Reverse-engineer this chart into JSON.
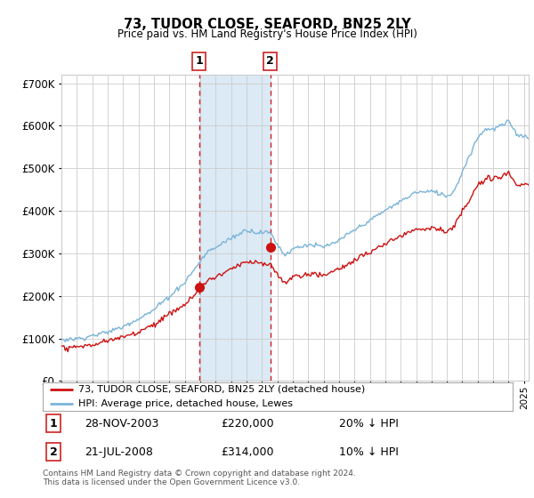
{
  "title": "73, TUDOR CLOSE, SEAFORD, BN25 2LY",
  "subtitle": "Price paid vs. HM Land Registry's House Price Index (HPI)",
  "legend_line1": "73, TUDOR CLOSE, SEAFORD, BN25 2LY (detached house)",
  "legend_line2": "HPI: Average price, detached house, Lewes",
  "sale1_label": "1",
  "sale1_date": "28-NOV-2003",
  "sale1_price": "£220,000",
  "sale1_hpi": "20% ↓ HPI",
  "sale2_label": "2",
  "sale2_date": "21-JUL-2008",
  "sale2_price": "£314,000",
  "sale2_hpi": "10% ↓ HPI",
  "footnote": "Contains HM Land Registry data © Crown copyright and database right 2024.\nThis data is licensed under the Open Government Licence v3.0.",
  "sale1_year": 2003.92,
  "sale1_value": 220000,
  "sale2_year": 2008.54,
  "sale2_value": 314000,
  "hpi_color": "#7ab4d8",
  "price_color": "#cc1111",
  "sale_marker_color": "#cc1111",
  "vspan_color": "#dbeaf5",
  "vline_color": "#cc2222",
  "background_color": "#ffffff",
  "ylim": [
    0,
    720000
  ],
  "xlim_start": 1995.0,
  "xlim_end": 2025.3
}
